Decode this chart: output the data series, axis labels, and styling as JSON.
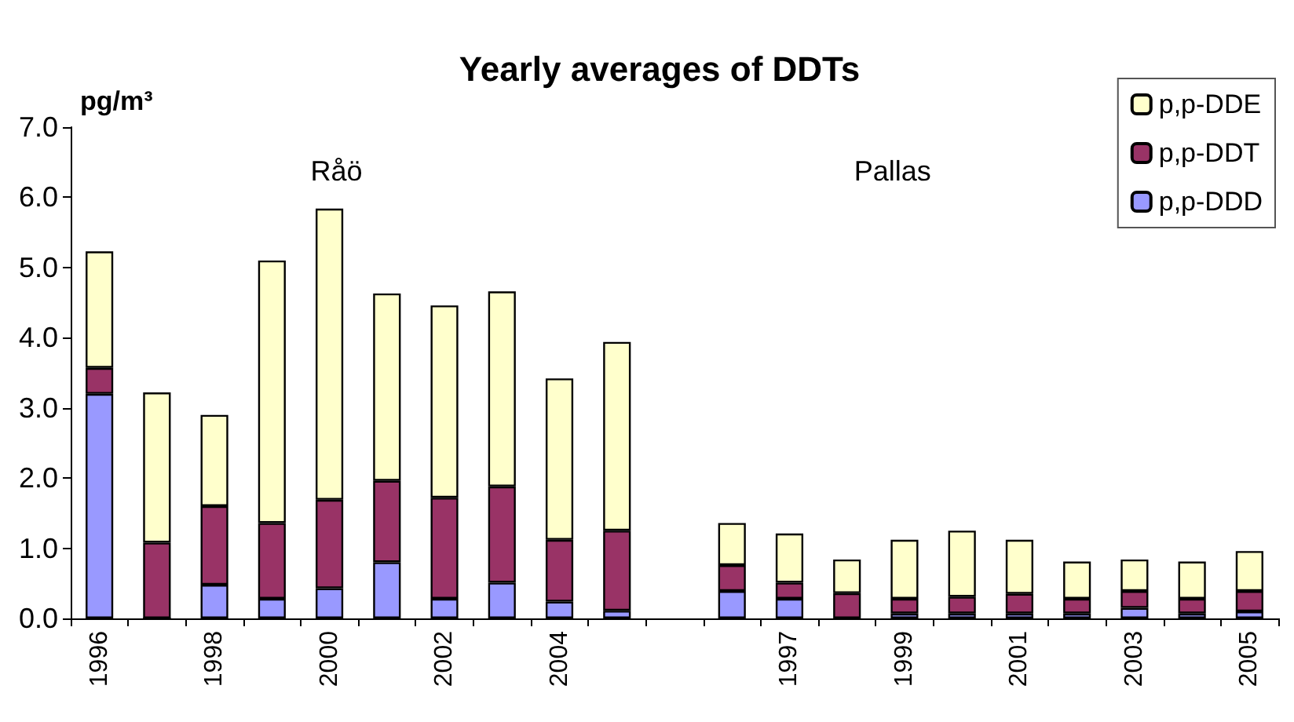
{
  "chart_data": {
    "type": "bar",
    "title": "Yearly averages of DDTs",
    "ylabel": "pg/m³",
    "stacked": true,
    "grid": false,
    "legend": "top right",
    "categories": [
      "1996",
      null,
      "1998",
      null,
      "2000",
      null,
      "2002",
      null,
      "2004",
      null,
      null,
      null,
      "1997",
      null,
      "1999",
      null,
      "2001",
      null,
      "2003",
      null,
      "2005"
    ],
    "ylim": [
      0,
      7
    ],
    "yticks": [
      {
        "value": 0,
        "label": "0.0"
      },
      {
        "value": 1,
        "label": "1.0"
      },
      {
        "value": 2,
        "label": "2.0"
      },
      {
        "value": 3,
        "label": "3.0"
      },
      {
        "value": 4,
        "label": "4.0"
      },
      {
        "value": 5,
        "label": "5.0"
      },
      {
        "value": 6,
        "label": "6.0"
      },
      {
        "value": 7,
        "label": "7.0"
      }
    ],
    "annotations": [
      "Råö",
      "Pallas"
    ],
    "series": [
      {
        "name": "p,p-DDD",
        "color": "#9999ff",
        "values": [
          3.2,
          0,
          0.48,
          0.28,
          0.43,
          0.8,
          0.28,
          0.51,
          0.24,
          0.11,
          null,
          0.39,
          0.28,
          null,
          0.07,
          0.07,
          0.07,
          0.07,
          0.15,
          0.07,
          0.1
        ]
      },
      {
        "name": "p,p-DDT",
        "color": "#993366",
        "values": [
          0.37,
          1.08,
          1.12,
          1.08,
          1.26,
          1.16,
          1.44,
          1.37,
          0.88,
          1.14,
          null,
          0.37,
          0.23,
          0.36,
          0.21,
          0.24,
          0.28,
          0.21,
          0.24,
          0.21,
          0.29
        ]
      },
      {
        "name": "p,p-DDE",
        "color": "#ffffcc",
        "values": [
          1.66,
          2.14,
          1.3,
          3.74,
          4.15,
          2.67,
          2.74,
          2.78,
          2.3,
          2.69,
          null,
          0.6,
          0.7,
          0.48,
          0.84,
          0.94,
          0.77,
          0.53,
          0.45,
          0.53,
          0.57
        ]
      }
    ]
  }
}
